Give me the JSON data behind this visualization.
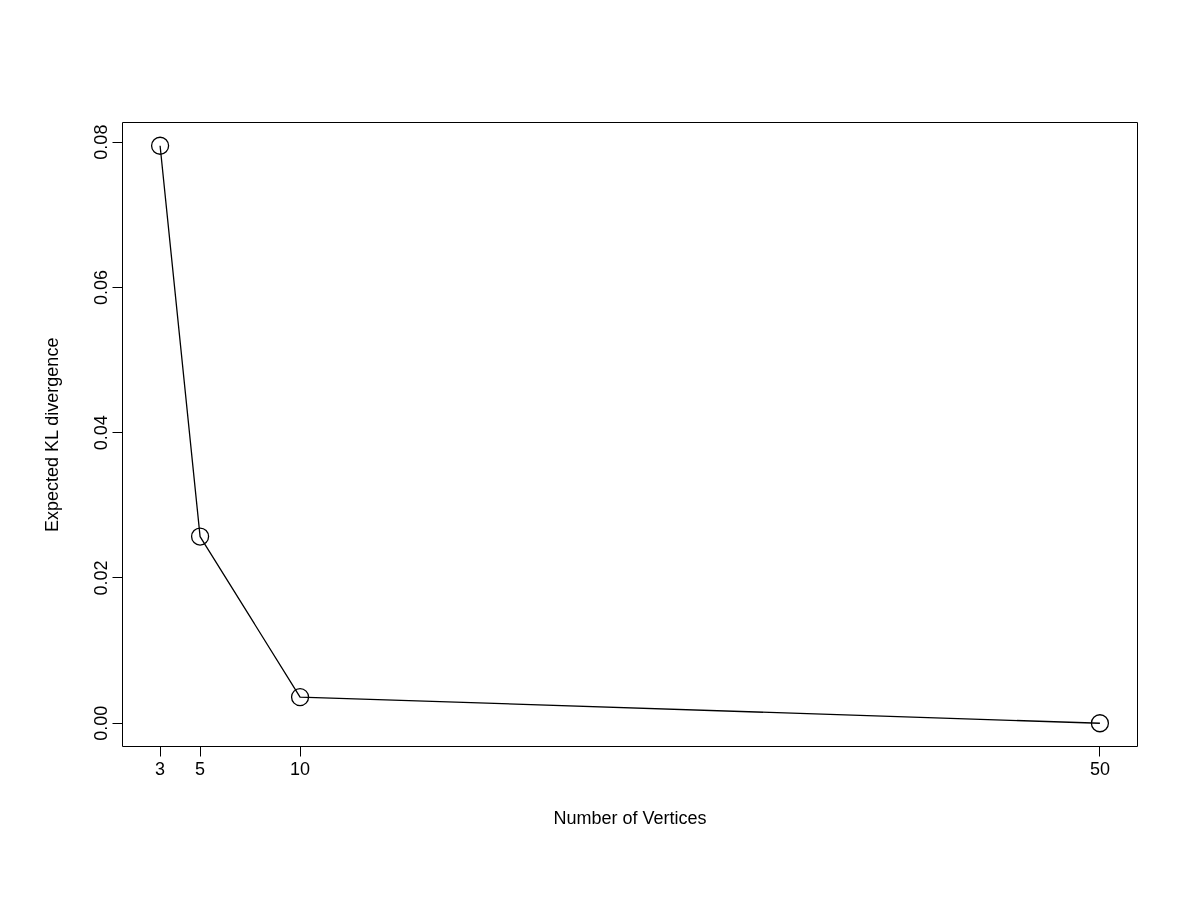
{
  "chart_data": {
    "type": "line",
    "xlabel": "Number of Vertices",
    "ylabel": "Expected KL divergence",
    "x": [
      3,
      5,
      10,
      50
    ],
    "series": [
      {
        "color": "#000000",
        "values": [
          0.0795,
          0.0257,
          0.0036,
          0.0
        ]
      }
    ],
    "xlim": [
      1.12,
      51.88
    ],
    "xticks": [
      3,
      5,
      10,
      50
    ],
    "ylim": [
      -0.0032,
      0.0827
    ],
    "yticks": [
      {
        "value": 0,
        "label": "0.00"
      },
      {
        "value": 0.02,
        "label": "0.02"
      },
      {
        "value": 0.04,
        "label": "0.04"
      },
      {
        "value": 0.06,
        "label": "0.06"
      },
      {
        "value": 0.08,
        "label": "0.08"
      }
    ],
    "marker": "circle",
    "line_style": "solid",
    "grid": false
  }
}
